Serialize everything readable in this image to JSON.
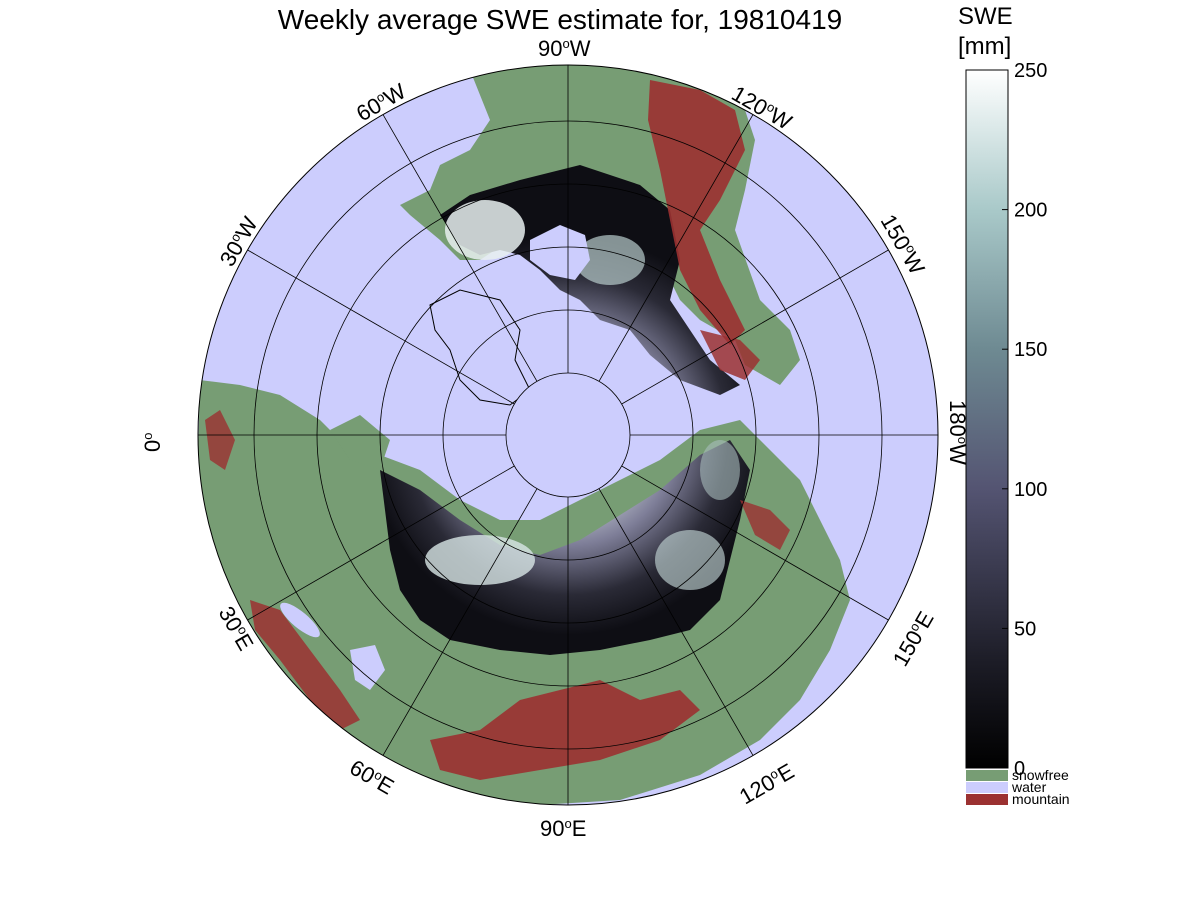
{
  "title": "Weekly average SWE estimate for, 19810419",
  "colorbar": {
    "title_line1": "SWE",
    "title_line2": "[mm]",
    "min": 0,
    "max": 250,
    "ticks": [
      "0",
      "50",
      "100",
      "150",
      "200",
      "250"
    ],
    "categories": [
      {
        "label": "snowfree",
        "color": "#779d74"
      },
      {
        "label": "water",
        "color": "#cccdfd"
      },
      {
        "label": "mountain",
        "color": "#9b3131"
      }
    ]
  },
  "longitude_labels": [
    {
      "text": "90°W",
      "deg": "90",
      "hemi": "W"
    },
    {
      "text": "120°W",
      "deg": "120",
      "hemi": "W"
    },
    {
      "text": "150°W",
      "deg": "150",
      "hemi": "W"
    },
    {
      "text": "180°W",
      "deg": "180",
      "hemi": "W"
    },
    {
      "text": "150°E",
      "deg": "150",
      "hemi": "E"
    },
    {
      "text": "120°E",
      "deg": "120",
      "hemi": "E"
    },
    {
      "text": "90°E",
      "deg": "90",
      "hemi": "E"
    },
    {
      "text": "60°E",
      "deg": "60",
      "hemi": "E"
    },
    {
      "text": "30°E",
      "deg": "30",
      "hemi": "E"
    },
    {
      "text": "0°",
      "deg": "0",
      "hemi": ""
    },
    {
      "text": "30°W",
      "deg": "30",
      "hemi": "W"
    },
    {
      "text": "60°W",
      "deg": "60",
      "hemi": "W"
    }
  ],
  "colors": {
    "ocean": "#cccdfd",
    "land": "#779d74",
    "mountain": "#9b3131",
    "snow_dark": "#0d0d12",
    "snow_mid": "#5e5e7a",
    "snow_light": "#f2f8f8"
  }
}
